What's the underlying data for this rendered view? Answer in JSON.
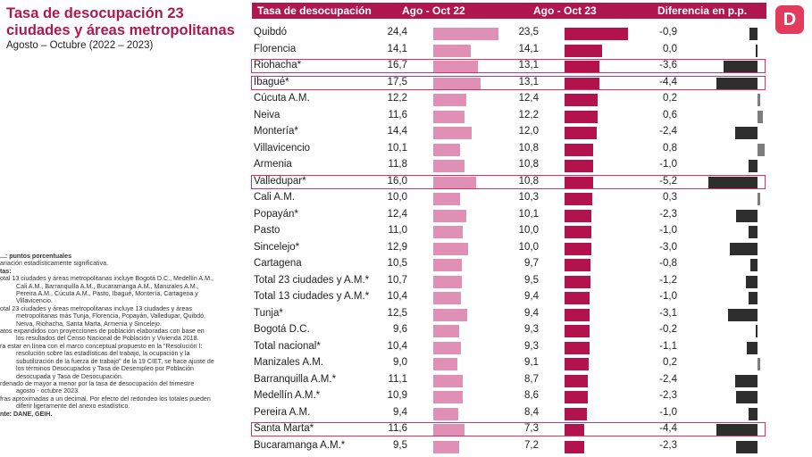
{
  "title": "Tasa de desocupación 23 ciudades y áreas metropolitanas",
  "subtitle": "Agosto – Octubre (2022 – 2023)",
  "logo_text": "D",
  "notes": [
    {
      "cls": "b",
      "text": "...: puntos porcentuales"
    },
    {
      "cls": "",
      "text": "ariación estadísticamente significativa."
    },
    {
      "cls": "b",
      "text": "tas:"
    },
    {
      "cls": "",
      "text": "otal 13 ciudades y áreas metropolitanas incluye Bogotá D.C., Medellín A.M.,"
    },
    {
      "cls": "ind",
      "text": "Cali A.M., Barranquilla A.M., Bucaramanga A.M., Manizales A.M.,"
    },
    {
      "cls": "ind",
      "text": "Pereira A.M., Cúcuta A.M., Pasto, Ibagué, Montería, Cartagena y"
    },
    {
      "cls": "ind",
      "text": "Villavicencio."
    },
    {
      "cls": "",
      "text": "otal 23 ciudades y áreas metropolitanas incluye 13 ciudades y áreas"
    },
    {
      "cls": "ind",
      "text": "metropolitanas más Tunja, Florencia, Popayán, Valledupar, Quibdó,"
    },
    {
      "cls": "ind",
      "text": "Neiva, Riohacha, Santa Marta, Armenia y Sincelejo."
    },
    {
      "cls": "",
      "text": "atos expandidos con proyecciones de población elaboradas con base en"
    },
    {
      "cls": "ind",
      "text": "los resultados del Censo Nacional de Población y Vivienda 2018."
    },
    {
      "cls": "",
      "text": "ra estar en línea con el marco conceptual propuesto en la \"Resolución I:"
    },
    {
      "cls": "ind",
      "text": "resolución sobre las estadísticas del trabajo, la ocupación y la"
    },
    {
      "cls": "ind",
      "text": "subutilización de la fuerza de trabajo\" de la 19 CIET, se hace ajuste de"
    },
    {
      "cls": "ind",
      "text": "los términos Desocupados y Tasa de Desempleo por Población"
    },
    {
      "cls": "ind",
      "text": "desocupada y Tasa de Desocupación."
    },
    {
      "cls": "",
      "text": "rdenado de mayor a menor por la tasa de desocupación del trimestre"
    },
    {
      "cls": "ind",
      "text": "agosto - octubre 2023."
    },
    {
      "cls": "",
      "text": "fras aproximadas a un decimal. Por efecto del redondeo los totales pueden"
    },
    {
      "cls": "ind",
      "text": "diferir ligeramente del anexo estadístico."
    },
    {
      "cls": "b",
      "text": "nte: DANE, GEIH."
    }
  ],
  "chart_data": {
    "type": "table",
    "columns": [
      "Tasa de desocupación",
      "Ago - Oct 22",
      "Ago - Oct 23",
      "Diferencia en p.p."
    ],
    "rows": [
      {
        "city": "Quibdó",
        "v22": "24,4",
        "v23": "23,5",
        "diff": "-0,9",
        "n22": 24.4,
        "n23": 23.5,
        "nd": -0.9,
        "hl": false
      },
      {
        "city": "Florencia",
        "v22": "14,1",
        "v23": "14,1",
        "diff": "0,0",
        "n22": 14.1,
        "n23": 14.1,
        "nd": 0.0,
        "hl": false
      },
      {
        "city": "Riohacha*",
        "v22": "16,7",
        "v23": "13,1",
        "diff": "-3,6",
        "n22": 16.7,
        "n23": 13.1,
        "nd": -3.6,
        "hl": true
      },
      {
        "city": "Ibagué*",
        "v22": "17,5",
        "v23": "13,1",
        "diff": "-4,4",
        "n22": 17.5,
        "n23": 13.1,
        "nd": -4.4,
        "hl": true
      },
      {
        "city": "Cúcuta A.M.",
        "v22": "12,2",
        "v23": "12,4",
        "diff": "0,2",
        "n22": 12.2,
        "n23": 12.4,
        "nd": 0.2,
        "hl": false
      },
      {
        "city": "Neiva",
        "v22": "11,6",
        "v23": "12,2",
        "diff": "0,6",
        "n22": 11.6,
        "n23": 12.2,
        "nd": 0.6,
        "hl": false
      },
      {
        "city": "Montería*",
        "v22": "14,4",
        "v23": "12,0",
        "diff": "-2,4",
        "n22": 14.4,
        "n23": 12.0,
        "nd": -2.4,
        "hl": false
      },
      {
        "city": "Villavicencio",
        "v22": "10,1",
        "v23": "10,8",
        "diff": "0,8",
        "n22": 10.1,
        "n23": 10.8,
        "nd": 0.8,
        "hl": false
      },
      {
        "city": "Armenia",
        "v22": "11,8",
        "v23": "10,8",
        "diff": "-1,0",
        "n22": 11.8,
        "n23": 10.8,
        "nd": -1.0,
        "hl": false
      },
      {
        "city": "Valledupar*",
        "v22": "16,0",
        "v23": "10,8",
        "diff": "-5,2",
        "n22": 16.0,
        "n23": 10.8,
        "nd": -5.2,
        "hl": true
      },
      {
        "city": "Cali A.M.",
        "v22": "10,0",
        "v23": "10,3",
        "diff": "0,3",
        "n22": 10.0,
        "n23": 10.3,
        "nd": 0.3,
        "hl": false
      },
      {
        "city": "Popayán*",
        "v22": "12,4",
        "v23": "10,1",
        "diff": "-2,3",
        "n22": 12.4,
        "n23": 10.1,
        "nd": -2.3,
        "hl": false
      },
      {
        "city": "Pasto",
        "v22": "11,0",
        "v23": "10,0",
        "diff": "-1,0",
        "n22": 11.0,
        "n23": 10.0,
        "nd": -1.0,
        "hl": false
      },
      {
        "city": "Sincelejo*",
        "v22": "12,9",
        "v23": "10,0",
        "diff": "-3,0",
        "n22": 12.9,
        "n23": 10.0,
        "nd": -3.0,
        "hl": false
      },
      {
        "city": "Cartagena",
        "v22": "10,5",
        "v23": "9,7",
        "diff": "-0,8",
        "n22": 10.5,
        "n23": 9.7,
        "nd": -0.8,
        "hl": false
      },
      {
        "city": "Total 23 ciudades y A.M.*",
        "v22": "10,7",
        "v23": "9,5",
        "diff": "-1,2",
        "n22": 10.7,
        "n23": 9.5,
        "nd": -1.2,
        "hl": false
      },
      {
        "city": "Total 13 ciudades y A.M.*",
        "v22": "10,4",
        "v23": "9,4",
        "diff": "-1,0",
        "n22": 10.4,
        "n23": 9.4,
        "nd": -1.0,
        "hl": false
      },
      {
        "city": "Tunja*",
        "v22": "12,5",
        "v23": "9,4",
        "diff": "-3,1",
        "n22": 12.5,
        "n23": 9.4,
        "nd": -3.1,
        "hl": false
      },
      {
        "city": "Bogotá D.C.",
        "v22": "9,6",
        "v23": "9,3",
        "diff": "-0,2",
        "n22": 9.6,
        "n23": 9.3,
        "nd": -0.2,
        "hl": false
      },
      {
        "city": "Total nacional*",
        "v22": "10,4",
        "v23": "9,3",
        "diff": "-1,1",
        "n22": 10.4,
        "n23": 9.3,
        "nd": -1.1,
        "hl": false
      },
      {
        "city": "Manizales A.M.",
        "v22": "9,0",
        "v23": "9,1",
        "diff": "0,2",
        "n22": 9.0,
        "n23": 9.1,
        "nd": 0.2,
        "hl": false
      },
      {
        "city": "Barranquilla A.M.*",
        "v22": "11,1",
        "v23": "8,7",
        "diff": "-2,4",
        "n22": 11.1,
        "n23": 8.7,
        "nd": -2.4,
        "hl": false
      },
      {
        "city": "Medellín A.M.*",
        "v22": "10,9",
        "v23": "8,6",
        "diff": "-2,3",
        "n22": 10.9,
        "n23": 8.6,
        "nd": -2.3,
        "hl": false
      },
      {
        "city": "Pereira A.M.",
        "v22": "9,4",
        "v23": "8,4",
        "diff": "-1,0",
        "n22": 9.4,
        "n23": 8.4,
        "nd": -1.0,
        "hl": false
      },
      {
        "city": "Santa Marta*",
        "v22": "11,6",
        "v23": "7,3",
        "diff": "-4,4",
        "n22": 11.6,
        "n23": 7.3,
        "nd": -4.4,
        "hl": true
      },
      {
        "city": "Bucaramanga A.M.*",
        "v22": "9,5",
        "v23": "7,2",
        "diff": "-2,3",
        "n22": 9.5,
        "n23": 7.2,
        "nd": -2.3,
        "hl": false
      }
    ],
    "colors": {
      "header": "#b0174e",
      "bar_2022": "#e090b4",
      "bar_2023": "#b3134d",
      "diff_negative": "#2e2e2e",
      "diff_positive": "#7d7d7d",
      "highlight": "#d9305f"
    }
  }
}
